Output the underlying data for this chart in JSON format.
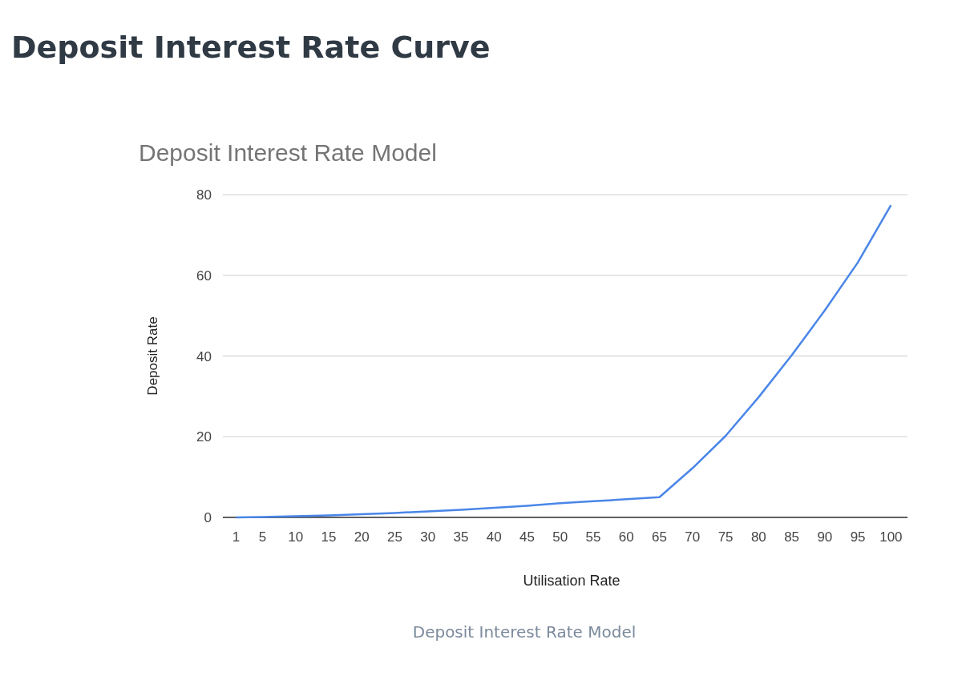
{
  "chart_data": {
    "type": "line",
    "title": "Deposit Interest Rate Curve",
    "subtitle": "Deposit Interest Rate Model",
    "xlabel": "Utilisation Rate",
    "ylabel": "Deposit Rate",
    "x": [
      1,
      5,
      10,
      15,
      20,
      25,
      30,
      35,
      40,
      45,
      50,
      55,
      60,
      65,
      70,
      75,
      80,
      85,
      90,
      95,
      100
    ],
    "xlim": [
      -1,
      102.5
    ],
    "xticks": [
      1,
      5,
      10,
      15,
      20,
      25,
      30,
      35,
      40,
      45,
      50,
      55,
      60,
      65,
      70,
      75,
      80,
      85,
      90,
      95,
      100
    ],
    "series": [
      {
        "color": "#4a86e8",
        "values": [
          0,
          0.1,
          0.3,
          0.5,
          0.8,
          1.1,
          1.5,
          1.9,
          2.4,
          2.9,
          3.5,
          4.0,
          4.5,
          5.0,
          12.2,
          20.2,
          29.8,
          40.2,
          51.3,
          63.2,
          77.4
        ]
      }
    ],
    "ylim": [
      0,
      80
    ],
    "yticks": [
      0,
      20,
      40,
      60,
      80
    ],
    "grid": "y",
    "annotations": [
      "Deposit Interest Rate Model"
    ]
  }
}
